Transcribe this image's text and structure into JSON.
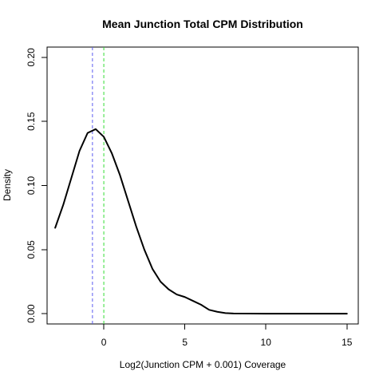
{
  "chart_data": {
    "type": "line",
    "title": "Mean Junction Total CPM Distribution",
    "xlabel": "Log2(Junction CPM + 0.001) Coverage",
    "ylabel": "Density",
    "xlim": [
      -3.5,
      15.7
    ],
    "ylim": [
      -0.008,
      0.208
    ],
    "x_ticks": [
      0,
      5,
      10,
      15
    ],
    "y_ticks": [
      0.0,
      0.05,
      0.1,
      0.15,
      0.2
    ],
    "x_tick_labels": [
      "0",
      "5",
      "10",
      "15"
    ],
    "y_tick_labels": [
      "0.00",
      "0.05",
      "0.10",
      "0.15",
      "0.20"
    ],
    "grid": false,
    "series": [
      {
        "color": "#000000",
        "x": [
          -3.0,
          -2.5,
          -2.0,
          -1.5,
          -1.0,
          -0.5,
          0.0,
          0.5,
          1.0,
          1.5,
          2.0,
          2.5,
          3.0,
          3.5,
          4.0,
          4.5,
          5.0,
          5.5,
          6.0,
          6.5,
          7.0,
          7.5,
          8.0,
          9.0,
          10.0,
          11.0,
          12.0,
          13.0,
          14.0,
          15.0
        ],
        "y": [
          0.067,
          0.085,
          0.106,
          0.127,
          0.141,
          0.144,
          0.138,
          0.125,
          0.108,
          0.088,
          0.068,
          0.05,
          0.035,
          0.025,
          0.019,
          0.015,
          0.013,
          0.01,
          0.007,
          0.003,
          0.0015,
          0.0005,
          0.0002,
          0.0001,
          0.0,
          0.0,
          0.0,
          0.0,
          0.0,
          0.0
        ]
      }
    ],
    "vlines": [
      {
        "x": -0.7,
        "color": "#5b5bf0",
        "style": "dashed"
      },
      {
        "x": 0.0,
        "color": "#33dd33",
        "style": "dashed"
      }
    ]
  }
}
